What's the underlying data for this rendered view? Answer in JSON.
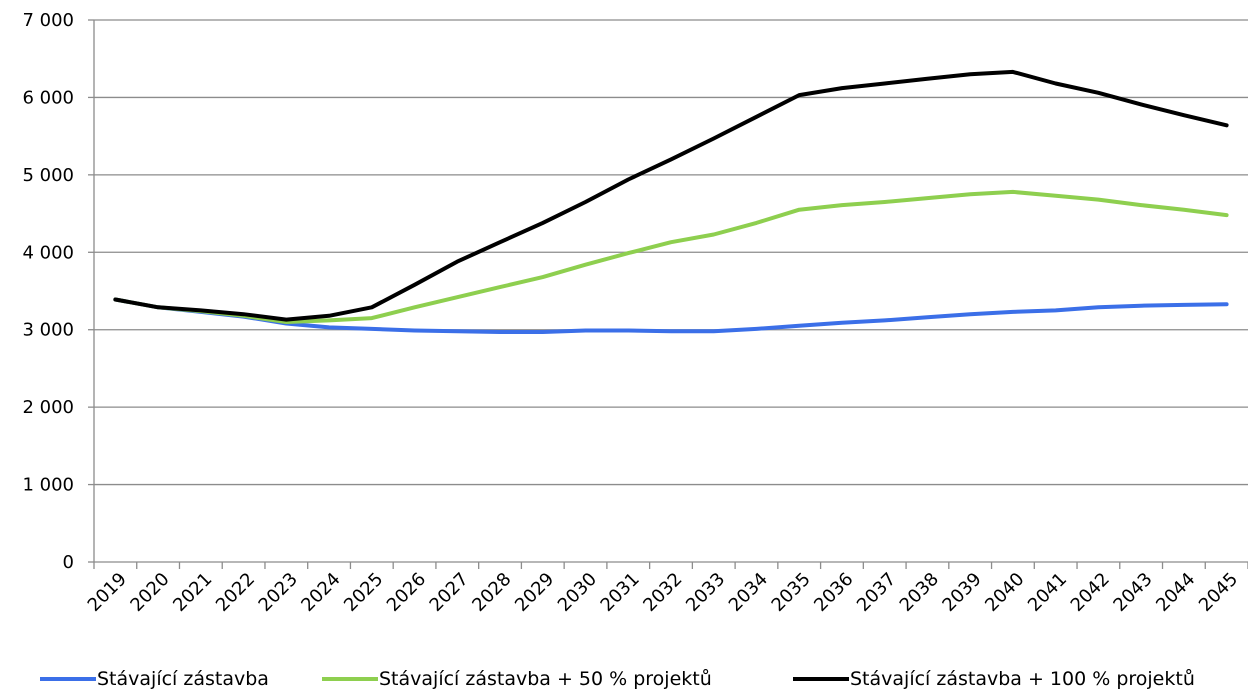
{
  "chart_data": {
    "type": "line",
    "title": "",
    "xlabel": "",
    "ylabel": "",
    "ylim": [
      0,
      7000
    ],
    "yticks": [
      0,
      1000,
      2000,
      3000,
      4000,
      5000,
      6000,
      7000
    ],
    "ytick_labels": [
      "0",
      "1 000",
      "2 000",
      "3 000",
      "4 000",
      "5 000",
      "6 000",
      "7 000"
    ],
    "grid": "horizontal",
    "legend_position": "bottom",
    "categories": [
      "2019",
      "2020",
      "2021",
      "2022",
      "2023",
      "2024",
      "2025",
      "2026",
      "2027",
      "2028",
      "2029",
      "2030",
      "2031",
      "2032",
      "2033",
      "2034",
      "2035",
      "2036",
      "2037",
      "2038",
      "2039",
      "2040",
      "2041",
      "2042",
      "2043",
      "2044",
      "2045"
    ],
    "series": [
      {
        "name": "Stávající zástavba",
        "color": "#3b6fe8",
        "values": [
          3390,
          3290,
          3230,
          3170,
          3080,
          3030,
          3010,
          2990,
          2980,
          2970,
          2970,
          2990,
          2990,
          2980,
          2980,
          3010,
          3050,
          3090,
          3120,
          3160,
          3200,
          3230,
          3250,
          3290,
          3310,
          3320,
          3330
        ]
      },
      {
        "name": "Stávající zástavba + 50 % projektů",
        "color": "#8ecf4f",
        "values": [
          3390,
          3290,
          3240,
          3180,
          3100,
          3120,
          3150,
          3290,
          3420,
          3550,
          3680,
          3840,
          3990,
          4130,
          4230,
          4380,
          4550,
          4610,
          4650,
          4700,
          4750,
          4780,
          4730,
          4680,
          4610,
          4550,
          4480
        ]
      },
      {
        "name": "Stávající zástavba + 100 % projektů",
        "color": "#000000",
        "values": [
          3390,
          3290,
          3250,
          3200,
          3130,
          3180,
          3290,
          3580,
          3880,
          4130,
          4380,
          4650,
          4940,
          5200,
          5470,
          5750,
          6030,
          6120,
          6180,
          6240,
          6300,
          6330,
          6180,
          6060,
          5910,
          5770,
          5640
        ]
      }
    ]
  }
}
